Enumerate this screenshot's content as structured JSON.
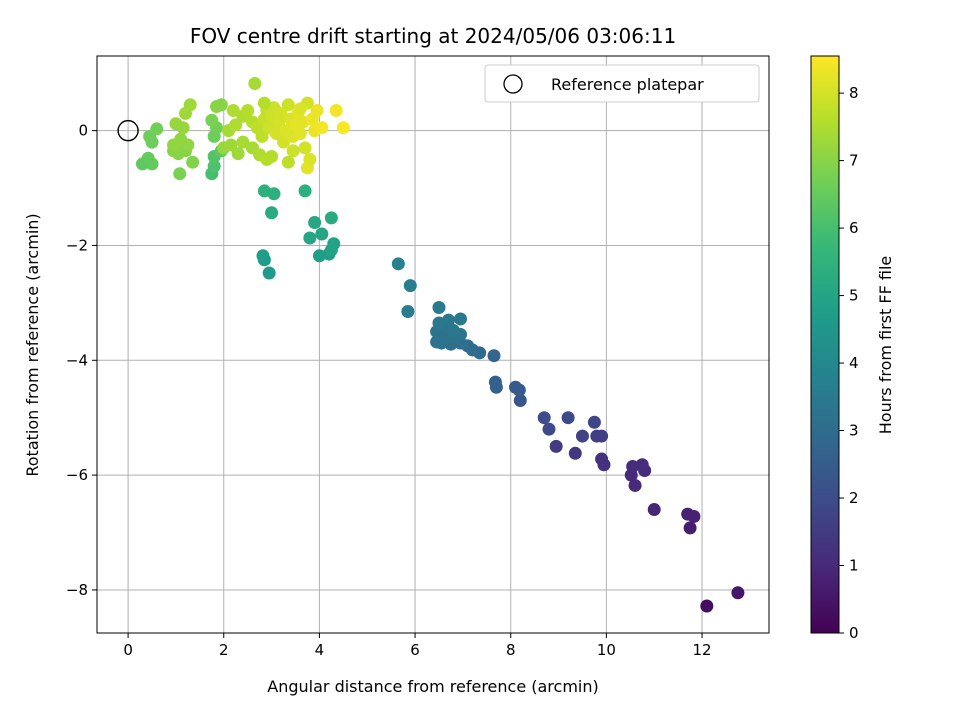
{
  "chart_data": {
    "type": "scatter",
    "title": "FOV centre drift starting at 2024/05/06 03:06:11",
    "xlabel": "Angular distance from reference (arcmin)",
    "ylabel": "Rotation from reference (arcmin)",
    "xlim": [
      -0.65,
      13.4
    ],
    "ylim": [
      -8.75,
      1.3
    ],
    "x_ticks": [
      0,
      2,
      4,
      6,
      8,
      10,
      12
    ],
    "y_ticks": [
      -8,
      -6,
      -4,
      -2,
      0
    ],
    "grid": true,
    "legend": {
      "placement": "top-right",
      "entries": [
        "Reference platepar"
      ]
    },
    "colorbar": {
      "label": "Hours from first FF file",
      "range": [
        0,
        8.55
      ],
      "ticks": [
        0,
        1,
        2,
        3,
        4,
        5,
        6,
        7,
        8
      ],
      "colormap": "viridis"
    },
    "reference_point": {
      "x": 0,
      "y": 0
    },
    "points": [
      {
        "x": 12.1,
        "y": -8.28,
        "t": 0.3
      },
      {
        "x": 12.75,
        "y": -8.05,
        "t": 0.5
      },
      {
        "x": 11.75,
        "y": -6.92,
        "t": 0.7
      },
      {
        "x": 11.7,
        "y": -6.68,
        "t": 0.8
      },
      {
        "x": 11.83,
        "y": -6.72,
        "t": 0.8
      },
      {
        "x": 11.0,
        "y": -6.6,
        "t": 0.9
      },
      {
        "x": 10.6,
        "y": -6.18,
        "t": 1.0
      },
      {
        "x": 10.52,
        "y": -6.0,
        "t": 1.0
      },
      {
        "x": 10.8,
        "y": -5.92,
        "t": 1.05
      },
      {
        "x": 10.55,
        "y": -5.85,
        "t": 1.1
      },
      {
        "x": 10.75,
        "y": -5.82,
        "t": 1.1
      },
      {
        "x": 9.95,
        "y": -5.82,
        "t": 1.2
      },
      {
        "x": 9.9,
        "y": -5.72,
        "t": 1.25
      },
      {
        "x": 9.35,
        "y": -5.62,
        "t": 1.4
      },
      {
        "x": 8.95,
        "y": -5.5,
        "t": 1.5
      },
      {
        "x": 9.8,
        "y": -5.32,
        "t": 1.6
      },
      {
        "x": 9.9,
        "y": -5.32,
        "t": 1.6
      },
      {
        "x": 9.5,
        "y": -5.32,
        "t": 1.7
      },
      {
        "x": 9.75,
        "y": -5.08,
        "t": 1.8
      },
      {
        "x": 8.8,
        "y": -5.2,
        "t": 1.9
      },
      {
        "x": 8.7,
        "y": -5.0,
        "t": 2.0
      },
      {
        "x": 9.2,
        "y": -5.0,
        "t": 1.9
      },
      {
        "x": 8.2,
        "y": -4.7,
        "t": 2.3
      },
      {
        "x": 8.1,
        "y": -4.47,
        "t": 2.4
      },
      {
        "x": 8.18,
        "y": -4.52,
        "t": 2.4
      },
      {
        "x": 7.7,
        "y": -4.47,
        "t": 2.6
      },
      {
        "x": 7.68,
        "y": -4.38,
        "t": 2.6
      },
      {
        "x": 7.65,
        "y": -3.92,
        "t": 2.8
      },
      {
        "x": 7.35,
        "y": -3.87,
        "t": 2.9
      },
      {
        "x": 7.2,
        "y": -3.82,
        "t": 3.0
      },
      {
        "x": 7.1,
        "y": -3.75,
        "t": 3.0
      },
      {
        "x": 6.95,
        "y": -3.7,
        "t": 3.1
      },
      {
        "x": 6.75,
        "y": -3.72,
        "t": 3.1
      },
      {
        "x": 6.55,
        "y": -3.7,
        "t": 3.2
      },
      {
        "x": 6.45,
        "y": -3.68,
        "t": 3.2
      },
      {
        "x": 6.62,
        "y": -3.62,
        "t": 3.2
      },
      {
        "x": 6.85,
        "y": -3.6,
        "t": 3.3
      },
      {
        "x": 6.95,
        "y": -3.55,
        "t": 3.3
      },
      {
        "x": 6.45,
        "y": -3.5,
        "t": 3.3
      },
      {
        "x": 6.65,
        "y": -3.45,
        "t": 3.3
      },
      {
        "x": 6.8,
        "y": -3.48,
        "t": 3.4
      },
      {
        "x": 6.5,
        "y": -3.35,
        "t": 3.4
      },
      {
        "x": 6.7,
        "y": -3.3,
        "t": 3.4
      },
      {
        "x": 6.95,
        "y": -3.28,
        "t": 3.4
      },
      {
        "x": 6.5,
        "y": -3.08,
        "t": 3.5
      },
      {
        "x": 5.85,
        "y": -3.15,
        "t": 3.6
      },
      {
        "x": 5.9,
        "y": -2.7,
        "t": 3.7
      },
      {
        "x": 5.65,
        "y": -2.32,
        "t": 3.8
      },
      {
        "x": 2.95,
        "y": -2.48,
        "t": 4.6
      },
      {
        "x": 2.85,
        "y": -2.25,
        "t": 4.7
      },
      {
        "x": 2.82,
        "y": -2.18,
        "t": 4.7
      },
      {
        "x": 4.0,
        "y": -2.18,
        "t": 4.8
      },
      {
        "x": 4.2,
        "y": -2.15,
        "t": 4.8
      },
      {
        "x": 4.25,
        "y": -2.08,
        "t": 4.9
      },
      {
        "x": 4.3,
        "y": -1.97,
        "t": 4.9
      },
      {
        "x": 3.8,
        "y": -1.87,
        "t": 5.0
      },
      {
        "x": 4.05,
        "y": -1.8,
        "t": 5.0
      },
      {
        "x": 3.9,
        "y": -1.6,
        "t": 5.1
      },
      {
        "x": 4.25,
        "y": -1.52,
        "t": 5.2
      },
      {
        "x": 3.0,
        "y": -1.43,
        "t": 5.2
      },
      {
        "x": 2.85,
        "y": -1.05,
        "t": 5.4
      },
      {
        "x": 3.05,
        "y": -1.1,
        "t": 5.4
      },
      {
        "x": 3.7,
        "y": -1.05,
        "t": 5.4
      },
      {
        "x": 1.75,
        "y": -0.75,
        "t": 6.0
      },
      {
        "x": 1.8,
        "y": -0.62,
        "t": 6.1
      },
      {
        "x": 1.8,
        "y": -0.45,
        "t": 6.2
      },
      {
        "x": 1.95,
        "y": -0.35,
        "t": 6.4
      },
      {
        "x": 1.8,
        "y": -0.1,
        "t": 6.6
      },
      {
        "x": 1.85,
        "y": 0.05,
        "t": 6.7
      },
      {
        "x": 1.75,
        "y": 0.18,
        "t": 6.8
      },
      {
        "x": 1.85,
        "y": 0.42,
        "t": 7.0
      },
      {
        "x": 1.95,
        "y": 0.45,
        "t": 7.0
      },
      {
        "x": 0.3,
        "y": -0.58,
        "t": 6.4
      },
      {
        "x": 0.5,
        "y": -0.58,
        "t": 6.5
      },
      {
        "x": 0.42,
        "y": -0.48,
        "t": 6.5
      },
      {
        "x": 0.45,
        "y": -0.1,
        "t": 6.6
      },
      {
        "x": 0.5,
        "y": -0.2,
        "t": 6.6
      },
      {
        "x": 0.6,
        "y": 0.03,
        "t": 6.7
      },
      {
        "x": 1.08,
        "y": -0.75,
        "t": 6.8
      },
      {
        "x": 1.35,
        "y": -0.55,
        "t": 6.9
      },
      {
        "x": 0.95,
        "y": -0.35,
        "t": 7.0
      },
      {
        "x": 1.05,
        "y": -0.4,
        "t": 7.0
      },
      {
        "x": 1.1,
        "y": -0.3,
        "t": 7.0
      },
      {
        "x": 1.2,
        "y": -0.35,
        "t": 7.0
      },
      {
        "x": 1.25,
        "y": -0.25,
        "t": 7.1
      },
      {
        "x": 0.95,
        "y": -0.25,
        "t": 7.1
      },
      {
        "x": 1.1,
        "y": -0.15,
        "t": 7.1
      },
      {
        "x": 1.0,
        "y": 0.12,
        "t": 7.2
      },
      {
        "x": 1.15,
        "y": 0.05,
        "t": 7.2
      },
      {
        "x": 1.2,
        "y": 0.3,
        "t": 7.3
      },
      {
        "x": 1.3,
        "y": 0.45,
        "t": 7.3
      },
      {
        "x": 2.0,
        "y": -0.3,
        "t": 7.2
      },
      {
        "x": 2.3,
        "y": -0.4,
        "t": 7.3
      },
      {
        "x": 2.15,
        "y": -0.25,
        "t": 7.3
      },
      {
        "x": 2.4,
        "y": -0.2,
        "t": 7.4
      },
      {
        "x": 2.6,
        "y": -0.3,
        "t": 7.4
      },
      {
        "x": 2.75,
        "y": -0.42,
        "t": 7.5
      },
      {
        "x": 2.9,
        "y": -0.5,
        "t": 7.6
      },
      {
        "x": 3.0,
        "y": -0.45,
        "t": 7.6
      },
      {
        "x": 3.35,
        "y": -0.55,
        "t": 7.7
      },
      {
        "x": 3.75,
        "y": -0.65,
        "t": 8.2
      },
      {
        "x": 3.8,
        "y": -0.5,
        "t": 8.1
      },
      {
        "x": 3.7,
        "y": -0.3,
        "t": 8.0
      },
      {
        "x": 2.1,
        "y": 0.0,
        "t": 7.4
      },
      {
        "x": 2.25,
        "y": 0.1,
        "t": 7.5
      },
      {
        "x": 2.4,
        "y": 0.25,
        "t": 7.5
      },
      {
        "x": 2.2,
        "y": 0.35,
        "t": 7.5
      },
      {
        "x": 2.5,
        "y": 0.35,
        "t": 7.6
      },
      {
        "x": 2.65,
        "y": 0.82,
        "t": 7.4
      },
      {
        "x": 2.6,
        "y": 0.15,
        "t": 7.6
      },
      {
        "x": 2.7,
        "y": 0.05,
        "t": 7.7
      },
      {
        "x": 2.8,
        "y": -0.1,
        "t": 7.7
      },
      {
        "x": 2.85,
        "y": 0.2,
        "t": 7.8
      },
      {
        "x": 2.9,
        "y": 0.35,
        "t": 7.8
      },
      {
        "x": 2.95,
        "y": 0.05,
        "t": 7.9
      },
      {
        "x": 3.0,
        "y": 0.25,
        "t": 7.9
      },
      {
        "x": 3.05,
        "y": 0.4,
        "t": 7.9
      },
      {
        "x": 3.1,
        "y": -0.05,
        "t": 8.0
      },
      {
        "x": 3.15,
        "y": 0.15,
        "t": 8.0
      },
      {
        "x": 3.2,
        "y": 0.3,
        "t": 8.0
      },
      {
        "x": 3.25,
        "y": -0.2,
        "t": 8.0
      },
      {
        "x": 3.3,
        "y": 0.0,
        "t": 8.1
      },
      {
        "x": 3.35,
        "y": 0.45,
        "t": 7.9
      },
      {
        "x": 3.4,
        "y": 0.2,
        "t": 8.1
      },
      {
        "x": 3.45,
        "y": -0.1,
        "t": 8.1
      },
      {
        "x": 3.5,
        "y": 0.1,
        "t": 8.2
      },
      {
        "x": 3.55,
        "y": 0.3,
        "t": 8.2
      },
      {
        "x": 3.6,
        "y": -0.05,
        "t": 8.2
      },
      {
        "x": 3.65,
        "y": 0.15,
        "t": 8.2
      },
      {
        "x": 2.85,
        "y": 0.48,
        "t": 7.6
      },
      {
        "x": 3.75,
        "y": 0.48,
        "t": 8.0
      },
      {
        "x": 3.85,
        "y": 0.2,
        "t": 8.3
      },
      {
        "x": 3.9,
        "y": 0.0,
        "t": 8.3
      },
      {
        "x": 3.95,
        "y": 0.35,
        "t": 8.3
      },
      {
        "x": 4.05,
        "y": 0.05,
        "t": 8.4
      },
      {
        "x": 4.35,
        "y": 0.35,
        "t": 8.4
      },
      {
        "x": 4.5,
        "y": 0.05,
        "t": 8.5
      },
      {
        "x": 3.6,
        "y": 0.38,
        "t": 8.1
      },
      {
        "x": 3.45,
        "y": -0.35,
        "t": 7.9
      }
    ]
  }
}
